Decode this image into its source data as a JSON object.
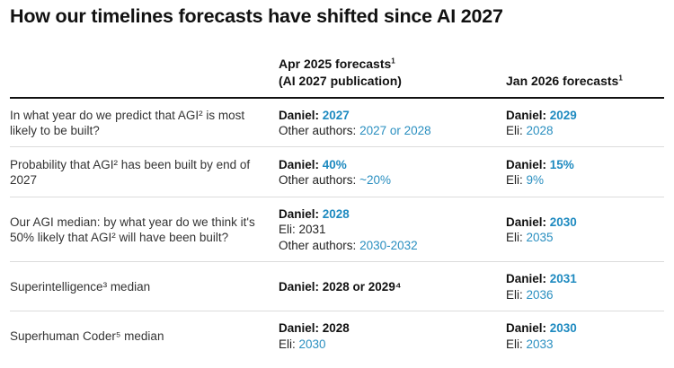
{
  "title": "How our timelines forecasts have shifted since AI 2027",
  "columns": {
    "col1_line1": "Apr 2025 forecasts",
    "col1_sup": "1",
    "col1_line2": "(AI 2027 publication)",
    "col2": "Jan 2026 forecasts",
    "col2_sup": "1"
  },
  "rows": [
    {
      "question": "In what year do we predict that AGI² is most likely to be built?",
      "apr": {
        "daniel_label": "Daniel:",
        "daniel_value": "2027",
        "others_label": "Other authors:",
        "others_value": "2027 or 2028"
      },
      "jan": {
        "daniel_label": "Daniel:",
        "daniel_value": "2029",
        "eli_label": "Eli:",
        "eli_value": "2028"
      }
    },
    {
      "question": "Probability that AGI² has been built by end of 2027",
      "apr": {
        "daniel_label": "Daniel:",
        "daniel_value": "40%",
        "others_label": "Other authors:",
        "others_value": "~20%"
      },
      "jan": {
        "daniel_label": "Daniel:",
        "daniel_value": "15%",
        "eli_label": "Eli:",
        "eli_value": "9%"
      }
    },
    {
      "question": "Our AGI median: by what year do we think it's 50% likely that AGI² will have been built?",
      "apr": {
        "daniel_label": "Daniel:",
        "daniel_value": "2028",
        "eli_text": "Eli: 2031",
        "others_label": "Other authors:",
        "others_value": "2030-2032"
      },
      "jan": {
        "daniel_label": "Daniel:",
        "daniel_value": "2030",
        "eli_label": "Eli:",
        "eli_value": "2035"
      }
    },
    {
      "question": "Superintelligence³ median",
      "apr": {
        "daniel_text": "Daniel: 2028 or 2029⁴"
      },
      "jan": {
        "daniel_label": "Daniel:",
        "daniel_value": "2031",
        "eli_label": "Eli:",
        "eli_value": "2036"
      }
    },
    {
      "question": "Superhuman Coder⁵ median",
      "apr": {
        "daniel_text": "Daniel: 2028",
        "eli_label": "Eli:",
        "eli_value": "2030"
      },
      "jan": {
        "daniel_label": "Daniel:",
        "daniel_value": "2030",
        "eli_label": "Eli:",
        "eli_value": "2033"
      }
    }
  ],
  "colors": {
    "accent": "#1e8ac0",
    "text": "#222222",
    "rule": "#111111",
    "separator": "#dcdcdc"
  }
}
